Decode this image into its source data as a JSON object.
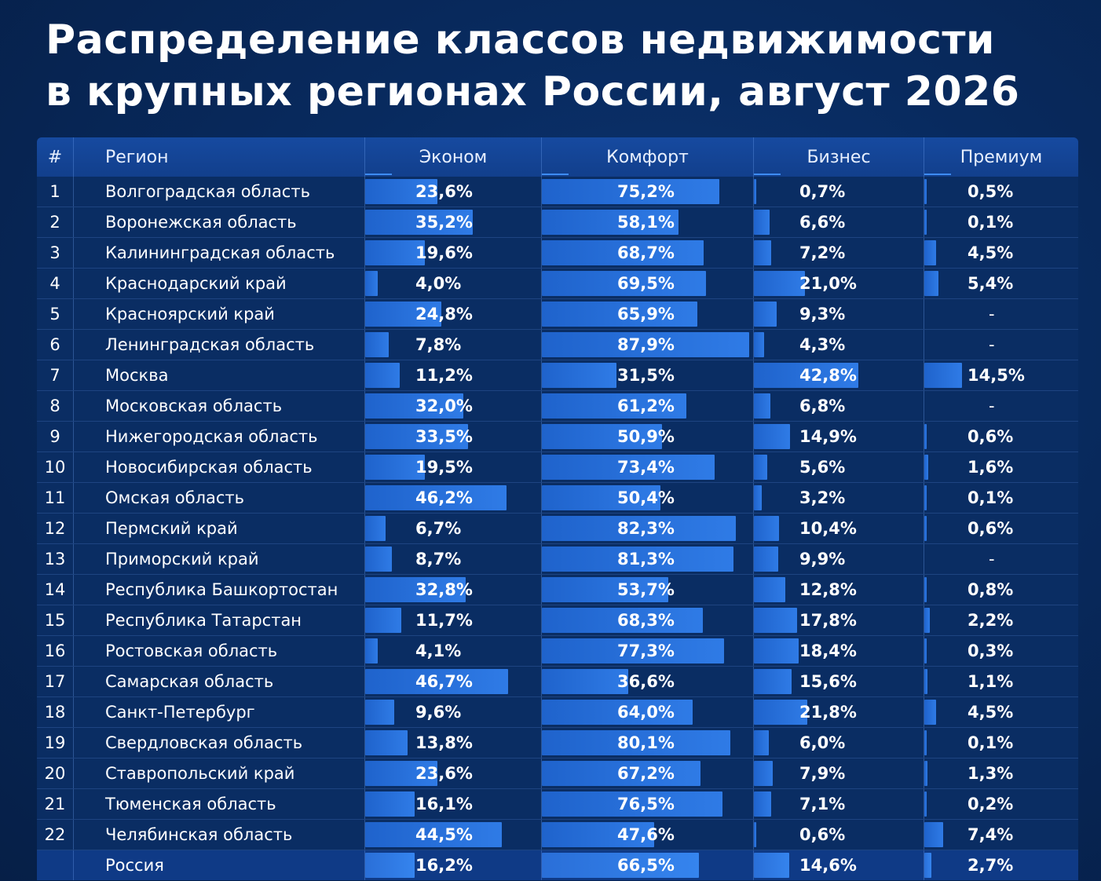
{
  "title_line1": "Распределение классов недвижимости",
  "title_line2": "в крупных регионах России, август 2026",
  "headers": {
    "num": "#",
    "region": "Регион",
    "econom": "Эконом",
    "komfort": "Комфорт",
    "biznes": "Бизнес",
    "premium": "Премиум"
  },
  "chart_data": {
    "type": "table",
    "title": "Распределение классов недвижимости в крупных регионах России, август 2026",
    "columns": [
      "#",
      "Регион",
      "Эконом",
      "Комфорт",
      "Бизнес",
      "Премиум"
    ],
    "series_names": [
      "Эконом",
      "Комфорт",
      "Бизнес",
      "Премиум"
    ],
    "unit": "%",
    "rows": [
      {
        "num": "1",
        "region": "Волгоградская область",
        "values": [
          23.6,
          75.2,
          0.7,
          0.5
        ],
        "labels": [
          "23,6%",
          "75,2%",
          "0,7%",
          "0,5%"
        ]
      },
      {
        "num": "2",
        "region": "Воронежская область",
        "values": [
          35.2,
          58.1,
          6.6,
          0.1
        ],
        "labels": [
          "35,2%",
          "58,1%",
          "6,6%",
          "0,1%"
        ]
      },
      {
        "num": "3",
        "region": "Калининградская область",
        "values": [
          19.6,
          68.7,
          7.2,
          4.5
        ],
        "labels": [
          "19,6%",
          "68,7%",
          "7,2%",
          "4,5%"
        ]
      },
      {
        "num": "4",
        "region": "Краснодарский край",
        "values": [
          4.0,
          69.5,
          21.0,
          5.4
        ],
        "labels": [
          "4,0%",
          "69,5%",
          "21,0%",
          "5,4%"
        ]
      },
      {
        "num": "5",
        "region": "Красноярский край",
        "values": [
          24.8,
          65.9,
          9.3,
          null
        ],
        "labels": [
          "24,8%",
          "65,9%",
          "9,3%",
          "-"
        ]
      },
      {
        "num": "6",
        "region": "Ленинградская область",
        "values": [
          7.8,
          87.9,
          4.3,
          null
        ],
        "labels": [
          "7,8%",
          "87,9%",
          "4,3%",
          "-"
        ]
      },
      {
        "num": "7",
        "region": "Москва",
        "values": [
          11.2,
          31.5,
          42.8,
          14.5
        ],
        "labels": [
          "11,2%",
          "31,5%",
          "42,8%",
          "14,5%"
        ]
      },
      {
        "num": "8",
        "region": "Московская область",
        "values": [
          32.0,
          61.2,
          6.8,
          null
        ],
        "labels": [
          "32,0%",
          "61,2%",
          "6,8%",
          "-"
        ]
      },
      {
        "num": "9",
        "region": "Нижегородская область",
        "values": [
          33.5,
          50.9,
          14.9,
          0.6
        ],
        "labels": [
          "33,5%",
          "50,9%",
          "14,9%",
          "0,6%"
        ]
      },
      {
        "num": "10",
        "region": "Новосибирская область",
        "values": [
          19.5,
          73.4,
          5.6,
          1.6
        ],
        "labels": [
          "19,5%",
          "73,4%",
          "5,6%",
          "1,6%"
        ]
      },
      {
        "num": "11",
        "region": "Омская область",
        "values": [
          46.2,
          50.4,
          3.2,
          0.1
        ],
        "labels": [
          "46,2%",
          "50,4%",
          "3,2%",
          "0,1%"
        ]
      },
      {
        "num": "12",
        "region": "Пермский край",
        "values": [
          6.7,
          82.3,
          10.4,
          0.6
        ],
        "labels": [
          "6,7%",
          "82,3%",
          "10,4%",
          "0,6%"
        ]
      },
      {
        "num": "13",
        "region": "Приморский край",
        "values": [
          8.7,
          81.3,
          9.9,
          null
        ],
        "labels": [
          "8,7%",
          "81,3%",
          "9,9%",
          "-"
        ]
      },
      {
        "num": "14",
        "region": "Республика Башкортостан",
        "values": [
          32.8,
          53.7,
          12.8,
          0.8
        ],
        "labels": [
          "32,8%",
          "53,7%",
          "12,8%",
          "0,8%"
        ]
      },
      {
        "num": "15",
        "region": "Республика Татарстан",
        "values": [
          11.7,
          68.3,
          17.8,
          2.2
        ],
        "labels": [
          "11,7%",
          "68,3%",
          "17,8%",
          "2,2%"
        ]
      },
      {
        "num": "16",
        "region": "Ростовская область",
        "values": [
          4.1,
          77.3,
          18.4,
          0.3
        ],
        "labels": [
          "4,1%",
          "77,3%",
          "18,4%",
          "0,3%"
        ]
      },
      {
        "num": "17",
        "region": "Самарская область",
        "values": [
          46.7,
          36.6,
          15.6,
          1.1
        ],
        "labels": [
          "46,7%",
          "36,6%",
          "15,6%",
          "1,1%"
        ]
      },
      {
        "num": "18",
        "region": "Санкт-Петербург",
        "values": [
          9.6,
          64.0,
          21.8,
          4.5
        ],
        "labels": [
          "9,6%",
          "64,0%",
          "21,8%",
          "4,5%"
        ]
      },
      {
        "num": "19",
        "region": "Свердловская область",
        "values": [
          13.8,
          80.1,
          6.0,
          0.1
        ],
        "labels": [
          "13,8%",
          "80,1%",
          "6,0%",
          "0,1%"
        ]
      },
      {
        "num": "20",
        "region": "Ставропольский край",
        "values": [
          23.6,
          67.2,
          7.9,
          1.3
        ],
        "labels": [
          "23,6%",
          "67,2%",
          "7,9%",
          "1,3%"
        ]
      },
      {
        "num": "21",
        "region": "Тюменская область",
        "values": [
          16.1,
          76.5,
          7.1,
          0.2
        ],
        "labels": [
          "16,1%",
          "76,5%",
          "7,1%",
          "0,2%"
        ]
      },
      {
        "num": "22",
        "region": "Челябинская область",
        "values": [
          44.5,
          47.6,
          0.6,
          7.4
        ],
        "labels": [
          "44,5%",
          "47,6%",
          "0,6%",
          "7,4%"
        ]
      }
    ],
    "total": {
      "num": "",
      "region": "Россия",
      "values": [
        16.2,
        66.5,
        14.6,
        2.7
      ],
      "labels": [
        "16,2%",
        "66,5%",
        "14,6%",
        "2,7%"
      ]
    },
    "bar_color": "#2f7be6",
    "background_color": "#082a5e"
  }
}
